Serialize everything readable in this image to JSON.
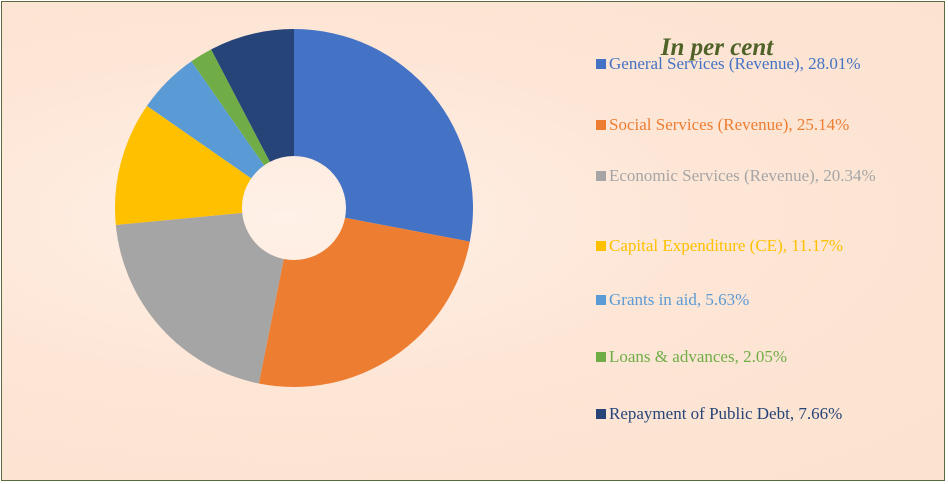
{
  "chart_data": {
    "type": "donut",
    "title": "In per cent",
    "categories": [
      "General Services (Revenue), 28.01%",
      "Social Services (Revenue), 25.14%",
      "Economic Services (Revenue), 20.34%",
      "Capital Expenditure (CE), 11.17%",
      "Grants in aid, 5.63%",
      "Loans & advances, 2.05%",
      "Repayment of Public Debt, 7.66%"
    ],
    "values": [
      28.01,
      25.14,
      20.34,
      11.17,
      5.63,
      2.05,
      7.66
    ],
    "colors": [
      "#4472c4",
      "#ed7d31",
      "#a5a5a5",
      "#ffc000",
      "#5b9bd5",
      "#70ad47",
      "#264478"
    ],
    "legend": "right"
  }
}
